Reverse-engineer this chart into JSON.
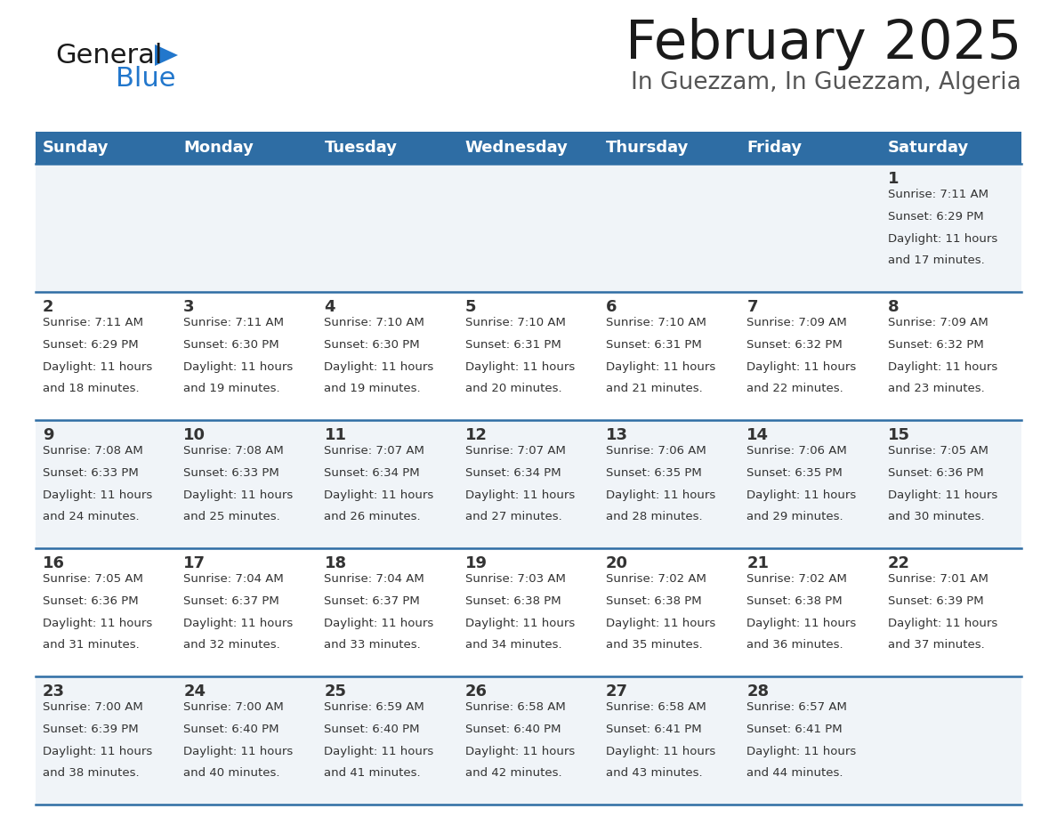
{
  "title": "February 2025",
  "subtitle": "In Guezzam, In Guezzam, Algeria",
  "days_of_week": [
    "Sunday",
    "Monday",
    "Tuesday",
    "Wednesday",
    "Thursday",
    "Friday",
    "Saturday"
  ],
  "header_bg": "#2e6da4",
  "header_text": "#ffffff",
  "cell_bg_light": "#f0f4f8",
  "cell_bg_white": "#ffffff",
  "divider_color": "#2e6da4",
  "text_color": "#333333",
  "title_color": "#1a1a1a",
  "subtitle_color": "#555555",
  "logo_black": "#1a1a1a",
  "logo_blue": "#2277cc",
  "logo_triangle": "#2277cc",
  "calendar_data": [
    [
      null,
      null,
      null,
      null,
      null,
      null,
      {
        "day": 1,
        "sunrise": "7:11 AM",
        "sunset": "6:29 PM",
        "daylight": "11 hours and 17 minutes."
      }
    ],
    [
      {
        "day": 2,
        "sunrise": "7:11 AM",
        "sunset": "6:29 PM",
        "daylight": "11 hours and 18 minutes."
      },
      {
        "day": 3,
        "sunrise": "7:11 AM",
        "sunset": "6:30 PM",
        "daylight": "11 hours and 19 minutes."
      },
      {
        "day": 4,
        "sunrise": "7:10 AM",
        "sunset": "6:30 PM",
        "daylight": "11 hours and 19 minutes."
      },
      {
        "day": 5,
        "sunrise": "7:10 AM",
        "sunset": "6:31 PM",
        "daylight": "11 hours and 20 minutes."
      },
      {
        "day": 6,
        "sunrise": "7:10 AM",
        "sunset": "6:31 PM",
        "daylight": "11 hours and 21 minutes."
      },
      {
        "day": 7,
        "sunrise": "7:09 AM",
        "sunset": "6:32 PM",
        "daylight": "11 hours and 22 minutes."
      },
      {
        "day": 8,
        "sunrise": "7:09 AM",
        "sunset": "6:32 PM",
        "daylight": "11 hours and 23 minutes."
      }
    ],
    [
      {
        "day": 9,
        "sunrise": "7:08 AM",
        "sunset": "6:33 PM",
        "daylight": "11 hours and 24 minutes."
      },
      {
        "day": 10,
        "sunrise": "7:08 AM",
        "sunset": "6:33 PM",
        "daylight": "11 hours and 25 minutes."
      },
      {
        "day": 11,
        "sunrise": "7:07 AM",
        "sunset": "6:34 PM",
        "daylight": "11 hours and 26 minutes."
      },
      {
        "day": 12,
        "sunrise": "7:07 AM",
        "sunset": "6:34 PM",
        "daylight": "11 hours and 27 minutes."
      },
      {
        "day": 13,
        "sunrise": "7:06 AM",
        "sunset": "6:35 PM",
        "daylight": "11 hours and 28 minutes."
      },
      {
        "day": 14,
        "sunrise": "7:06 AM",
        "sunset": "6:35 PM",
        "daylight": "11 hours and 29 minutes."
      },
      {
        "day": 15,
        "sunrise": "7:05 AM",
        "sunset": "6:36 PM",
        "daylight": "11 hours and 30 minutes."
      }
    ],
    [
      {
        "day": 16,
        "sunrise": "7:05 AM",
        "sunset": "6:36 PM",
        "daylight": "11 hours and 31 minutes."
      },
      {
        "day": 17,
        "sunrise": "7:04 AM",
        "sunset": "6:37 PM",
        "daylight": "11 hours and 32 minutes."
      },
      {
        "day": 18,
        "sunrise": "7:04 AM",
        "sunset": "6:37 PM",
        "daylight": "11 hours and 33 minutes."
      },
      {
        "day": 19,
        "sunrise": "7:03 AM",
        "sunset": "6:38 PM",
        "daylight": "11 hours and 34 minutes."
      },
      {
        "day": 20,
        "sunrise": "7:02 AM",
        "sunset": "6:38 PM",
        "daylight": "11 hours and 35 minutes."
      },
      {
        "day": 21,
        "sunrise": "7:02 AM",
        "sunset": "6:38 PM",
        "daylight": "11 hours and 36 minutes."
      },
      {
        "day": 22,
        "sunrise": "7:01 AM",
        "sunset": "6:39 PM",
        "daylight": "11 hours and 37 minutes."
      }
    ],
    [
      {
        "day": 23,
        "sunrise": "7:00 AM",
        "sunset": "6:39 PM",
        "daylight": "11 hours and 38 minutes."
      },
      {
        "day": 24,
        "sunrise": "7:00 AM",
        "sunset": "6:40 PM",
        "daylight": "11 hours and 40 minutes."
      },
      {
        "day": 25,
        "sunrise": "6:59 AM",
        "sunset": "6:40 PM",
        "daylight": "11 hours and 41 minutes."
      },
      {
        "day": 26,
        "sunrise": "6:58 AM",
        "sunset": "6:40 PM",
        "daylight": "11 hours and 42 minutes."
      },
      {
        "day": 27,
        "sunrise": "6:58 AM",
        "sunset": "6:41 PM",
        "daylight": "11 hours and 43 minutes."
      },
      {
        "day": 28,
        "sunrise": "6:57 AM",
        "sunset": "6:41 PM",
        "daylight": "11 hours and 44 minutes."
      },
      null
    ]
  ]
}
